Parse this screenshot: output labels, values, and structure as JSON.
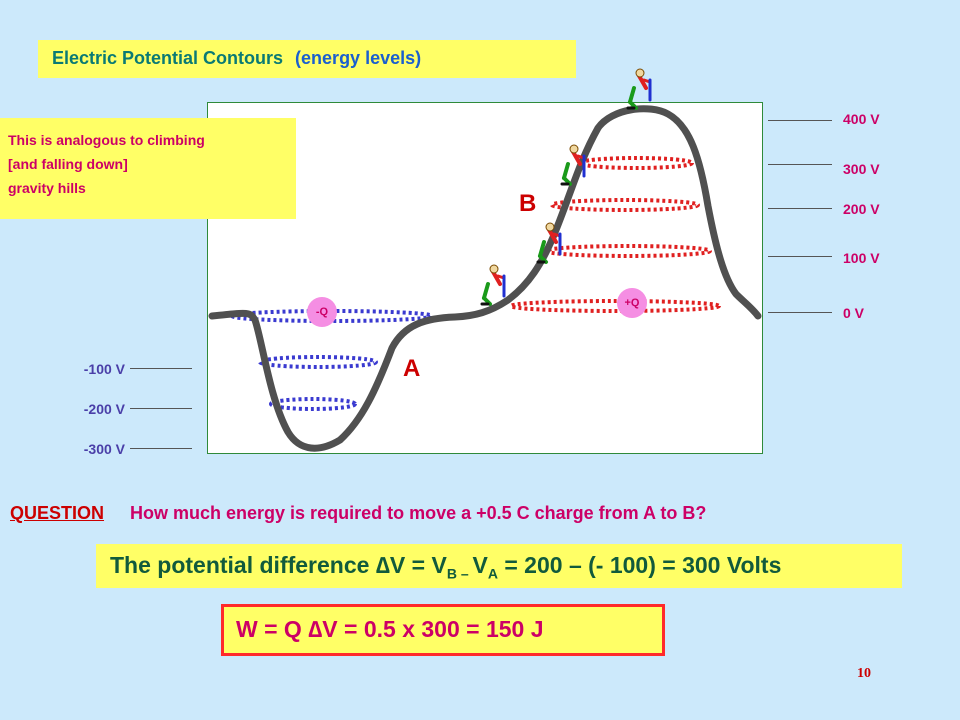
{
  "title": {
    "main": "Electric Potential Contours",
    "sub": "(energy levels)"
  },
  "note": {
    "lines": [
      "This is analogous to climbing",
      "[and falling down]",
      "gravity hills"
    ]
  },
  "levels": {
    "positive": [
      "400 V",
      "300 V",
      "200 V",
      "100 V",
      "0 V"
    ],
    "negative": [
      "-100 V",
      "-200 V",
      "-300 V"
    ]
  },
  "diagram": {
    "charge_neg": "-Q",
    "charge_pos": "+Q",
    "point_a": "A",
    "point_b": "B",
    "colors": {
      "curve": "#505050",
      "positive_contour": "#e02020",
      "negative_contour": "#3a3ad0",
      "frame": "#2f8a3a"
    }
  },
  "question": {
    "label": "QUESTION",
    "text": "How much energy is required to move a +0.5 C charge from A to B?"
  },
  "potential_difference": {
    "pre": "The potential difference ",
    "delta": "∆",
    "mid": "V = V",
    "sub_b": "B – ",
    "v": "V",
    "sub_a": "A",
    "post": " = 200 – (- 100) = 300 Volts"
  },
  "work": {
    "pre": "W = Q ",
    "delta": "∆",
    "post": "V = 0.5 x 300  =  150 J"
  },
  "page_number": "10"
}
